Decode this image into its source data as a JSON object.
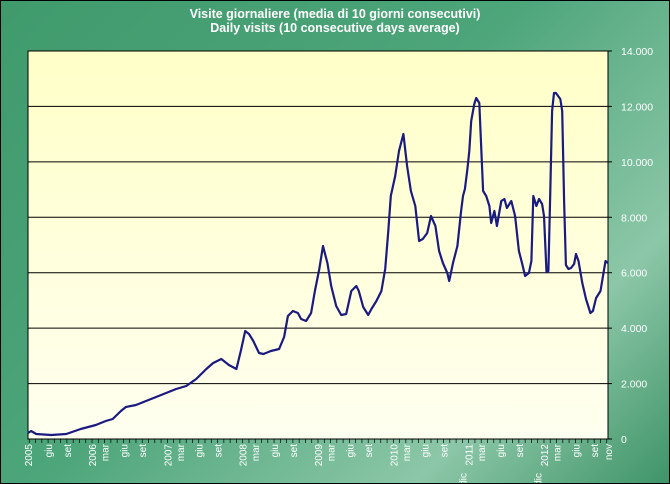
{
  "chart_data": {
    "type": "line",
    "title": "Visite giornaliere (media di 10 giorni consecutivi)",
    "subtitle": "Daily visits (10 consecutive days average)",
    "xlabel": "",
    "ylabel": "",
    "x_unit": "months since Jan 2005",
    "ylim": [
      0,
      14000
    ],
    "yticks": [
      {
        "value": 0,
        "label": "0"
      },
      {
        "value": 2000,
        "label": "2.000"
      },
      {
        "value": 4000,
        "label": "4.000"
      },
      {
        "value": 6000,
        "label": "6.000"
      },
      {
        "value": 8000,
        "label": "8.000"
      },
      {
        "value": 10000,
        "label": "10.000"
      },
      {
        "value": 12000,
        "label": "12.000"
      },
      {
        "value": 14000,
        "label": "14.000"
      }
    ],
    "xticks": [
      {
        "m": 1.8,
        "label": "2005"
      },
      {
        "m": 5,
        "label": "giu"
      },
      {
        "m": 8,
        "label": "set"
      },
      {
        "m": 12,
        "label": "2006"
      },
      {
        "m": 14,
        "label": "mar"
      },
      {
        "m": 17,
        "label": "giu"
      },
      {
        "m": 20,
        "label": "set"
      },
      {
        "m": 24,
        "label": "2007"
      },
      {
        "m": 26,
        "label": "mar"
      },
      {
        "m": 29,
        "label": "giu"
      },
      {
        "m": 32,
        "label": "set"
      },
      {
        "m": 36,
        "label": "2008"
      },
      {
        "m": 38,
        "label": "mar"
      },
      {
        "m": 41,
        "label": "giu"
      },
      {
        "m": 44,
        "label": "set"
      },
      {
        "m": 48,
        "label": "2009"
      },
      {
        "m": 50,
        "label": "mar"
      },
      {
        "m": 53,
        "label": "giu"
      },
      {
        "m": 56,
        "label": "set"
      },
      {
        "m": 60,
        "label": "2010"
      },
      {
        "m": 62,
        "label": "mar"
      },
      {
        "m": 65,
        "label": "giu"
      },
      {
        "m": 68,
        "label": "set"
      },
      {
        "m": 71,
        "label": "dic"
      },
      {
        "m": 72,
        "label": "2011"
      },
      {
        "m": 74,
        "label": "mar"
      },
      {
        "m": 77,
        "label": "giu"
      },
      {
        "m": 80,
        "label": "set"
      },
      {
        "m": 83,
        "label": "dic"
      },
      {
        "m": 84,
        "label": "2012"
      },
      {
        "m": 86,
        "label": "mar"
      },
      {
        "m": 89,
        "label": "giu"
      },
      {
        "m": 92,
        "label": "set"
      },
      {
        "m": 94.2,
        "label": "nov"
      }
    ],
    "xlim": [
      1.8,
      94.2
    ],
    "grid": "horizontal",
    "legend": "none",
    "series": [
      {
        "name": "Daily visits",
        "color": "#1a1a80",
        "x": [
          1.8,
          2.3,
          3.1,
          5.5,
          7.9,
          10.2,
          12.6,
          14.2,
          15.3,
          16.6,
          17.4,
          19.0,
          20.6,
          22.2,
          23.8,
          25.4,
          27.0,
          28.6,
          30.2,
          31.3,
          32.6,
          33.8,
          35.0,
          35.7,
          36.4,
          37.0,
          37.7,
          38.6,
          39.3,
          40.5,
          41.8,
          42.6,
          43.2,
          44.0,
          44.8,
          45.3,
          46.1,
          46.9,
          47.5,
          48.2,
          48.8,
          49.5,
          50.1,
          50.9,
          51.7,
          52.5,
          53.3,
          54.1,
          54.5,
          55.2,
          56.0,
          56.5,
          57.3,
          58.1,
          58.7,
          59.2,
          59.6,
          60.3,
          60.9,
          61.6,
          62.2,
          62.8,
          63.5,
          64.1,
          64.7,
          65.4,
          66.0,
          66.7,
          67.3,
          67.9,
          68.6,
          68.9,
          69.5,
          70.2,
          70.8,
          71.1,
          71.4,
          71.8,
          72.1,
          72.4,
          72.9,
          73.2,
          73.7,
          74.3,
          74.8,
          75.3,
          75.6,
          76.1,
          76.5,
          77.2,
          77.7,
          78.1,
          78.8,
          79.4,
          80.0,
          80.5,
          81.0,
          81.6,
          82.0,
          82.3,
          82.8,
          83.2,
          83.7,
          84.0,
          84.4,
          84.7,
          85.0,
          85.3,
          85.6,
          85.9,
          86.6,
          86.9,
          87.2,
          87.5,
          87.9,
          88.3,
          88.8,
          89.1,
          89.5,
          90.1,
          90.7,
          91.4,
          91.8,
          92.3,
          93.0,
          93.4,
          93.8,
          94.2
        ],
        "values": [
          216,
          289,
          180,
          144,
          180,
          361,
          505,
          649,
          722,
          1010,
          1155,
          1227,
          1371,
          1515,
          1660,
          1804,
          1912,
          2165,
          2526,
          2742,
          2886,
          2670,
          2526,
          3175,
          3897,
          3788,
          3536,
          3103,
          3067,
          3175,
          3247,
          3680,
          4438,
          4618,
          4546,
          4330,
          4257,
          4546,
          5340,
          6134,
          6963,
          6350,
          5520,
          4799,
          4474,
          4510,
          5340,
          5520,
          5340,
          4763,
          4474,
          4690,
          4979,
          5340,
          6134,
          7505,
          8767,
          9489,
          10391,
          11004,
          9850,
          8948,
          8407,
          7144,
          7216,
          7432,
          8046,
          7685,
          6783,
          6350,
          5989,
          5701,
          6350,
          6963,
          8226,
          8767,
          9020,
          9742,
          10391,
          11473,
          12087,
          12303,
          12123,
          8948,
          8767,
          8407,
          7793,
          8226,
          7685,
          8587,
          8659,
          8334,
          8587,
          8046,
          6783,
          6350,
          5881,
          5989,
          6422,
          8767,
          8407,
          8659,
          8479,
          8046,
          6025,
          6061,
          8948,
          11834,
          12484,
          12484,
          12267,
          11834,
          8587,
          6278,
          6134,
          6170,
          6314,
          6675,
          6422,
          5628,
          5051,
          4546,
          4618,
          5087,
          5340,
          5881,
          6422,
          6350
        ]
      }
    ]
  }
}
